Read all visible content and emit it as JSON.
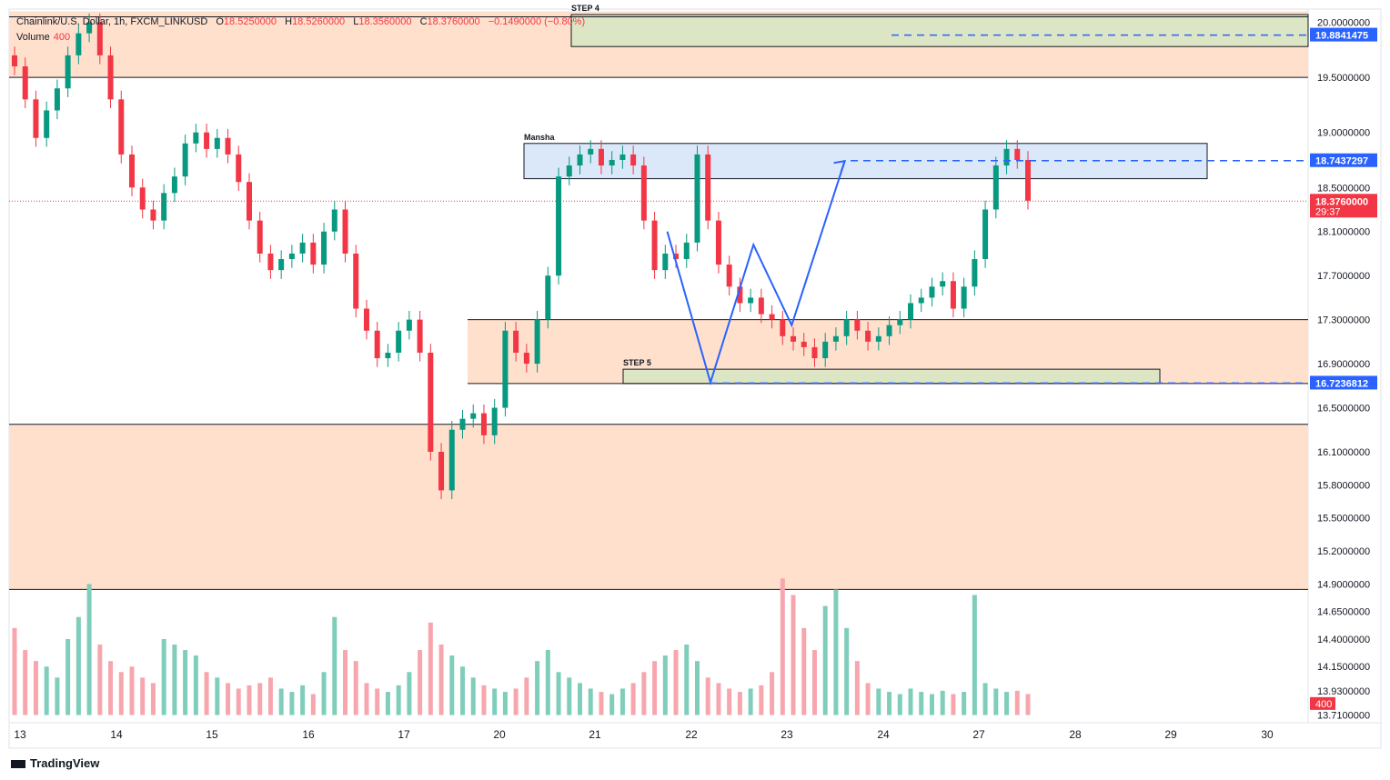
{
  "header": {
    "symbol": "Chainlink/U.S. Dollar, 1h, FXCM_LINKUSD",
    "open_label": "O",
    "open": "18.5250000",
    "high_label": "H",
    "high": "18.5260000",
    "low_label": "L",
    "low": "18.3560000",
    "close_label": "C",
    "close": "18.3760000",
    "change": "−0.1490000 (−0.80%)"
  },
  "volume_label": "Volume",
  "volume_value": "400",
  "brand": "TradingView",
  "chart_data": {
    "type": "candlestick",
    "title": "Chainlink/U.S. Dollar, 1h, FXCM_LINKUSD",
    "price_ticks": [
      "20.0000000",
      "19.5000000",
      "19.0000000",
      "18.5000000",
      "18.1000000",
      "17.7000000",
      "17.3000000",
      "16.9000000",
      "16.5000000",
      "16.1000000",
      "15.8000000",
      "15.5000000",
      "15.2000000",
      "14.9000000",
      "14.6500000",
      "14.4000000",
      "14.1500000",
      "13.9300000",
      "13.7100000"
    ],
    "price_tick_values": [
      20.0,
      19.5,
      19.0,
      18.5,
      18.1,
      17.7,
      17.3,
      16.9,
      16.5,
      16.1,
      15.8,
      15.5,
      15.2,
      14.9,
      14.65,
      14.4,
      14.15,
      13.93,
      13.71
    ],
    "time_ticks": [
      "13",
      "14",
      "15",
      "16",
      "17",
      "20",
      "21",
      "22",
      "23",
      "24",
      "27",
      "28",
      "29",
      "30"
    ],
    "price_labels": [
      {
        "text": "19.8841475",
        "value": 19.8841475,
        "color": "#2962ff"
      },
      {
        "text": "18.7437297",
        "value": 18.7437297,
        "color": "#2962ff"
      },
      {
        "text": "18.3760000",
        "value": 18.376,
        "color": "#f23645",
        "extra": "29:37"
      },
      {
        "text": "16.7236812",
        "value": 16.7236812,
        "color": "#2962ff"
      }
    ],
    "volume_badge": "400",
    "zones": [
      {
        "name": "upper-supply",
        "from": 19.5,
        "to": 20.1,
        "color": "#ffe0cc",
        "label": ""
      },
      {
        "name": "step4-box",
        "from": 19.78,
        "to": 20.07,
        "color": "#dce6c4",
        "label": "STEP 4"
      },
      {
        "name": "mansha-box",
        "from": 18.58,
        "to": 18.9,
        "color": "#dbe8fa",
        "label": "Mansha"
      },
      {
        "name": "mid-demand",
        "from": 16.72,
        "to": 17.3,
        "color": "#ffe0cc",
        "label": ""
      },
      {
        "name": "step5-box",
        "from": 16.72,
        "to": 16.85,
        "color": "#dce6c4",
        "label": "STEP 5"
      },
      {
        "name": "lower-demand",
        "from": 14.85,
        "to": 16.35,
        "color": "#ffe0cc",
        "label": ""
      }
    ],
    "pattern_path": [
      {
        "t": "21.75",
        "price": 18.1
      },
      {
        "t": "22.2",
        "price": 16.73
      },
      {
        "t": "22.65",
        "price": 17.98
      },
      {
        "t": "23.05",
        "price": 17.25
      },
      {
        "t": "23.6",
        "price": 18.74
      }
    ],
    "closes": [
      19.6,
      19.3,
      18.95,
      19.2,
      19.4,
      19.7,
      19.9,
      20.0,
      19.7,
      19.3,
      18.8,
      18.5,
      18.3,
      18.2,
      18.45,
      18.6,
      18.9,
      19.0,
      18.85,
      18.95,
      18.8,
      18.55,
      18.2,
      17.9,
      17.75,
      17.85,
      17.9,
      18.0,
      17.8,
      18.1,
      18.3,
      17.9,
      17.4,
      17.2,
      16.95,
      17.0,
      17.2,
      17.3,
      17.0,
      16.1,
      15.75,
      16.3,
      16.4,
      16.45,
      16.25,
      16.5,
      17.2,
      17.0,
      16.9,
      17.3,
      17.7,
      18.6,
      18.7,
      18.8,
      18.85,
      18.7,
      18.75,
      18.8,
      18.7,
      18.2,
      17.75,
      17.9,
      17.85,
      18.0,
      18.8,
      18.2,
      17.8,
      17.6,
      17.45,
      17.5,
      17.35,
      17.3,
      17.15,
      17.1,
      17.05,
      16.95,
      17.1,
      17.15,
      17.3,
      17.2,
      17.1,
      17.15,
      17.25,
      17.3,
      17.45,
      17.5,
      17.6,
      17.65,
      17.4,
      17.6,
      17.85,
      18.3,
      18.7,
      18.85,
      18.75,
      18.38
    ],
    "volumes": [
      14.5,
      14.3,
      14.2,
      14.15,
      14.05,
      14.4,
      14.6,
      14.9,
      14.35,
      14.2,
      14.1,
      14.15,
      14.05,
      14.0,
      14.4,
      14.35,
      14.3,
      14.25,
      14.1,
      14.05,
      14.0,
      13.95,
      13.98,
      14.0,
      14.05,
      13.95,
      13.92,
      13.98,
      13.9,
      14.1,
      14.6,
      14.3,
      14.2,
      14.0,
      13.95,
      13.92,
      13.98,
      14.1,
      14.3,
      14.55,
      14.35,
      14.25,
      14.15,
      14.05,
      13.98,
      13.95,
      13.92,
      13.95,
      14.05,
      14.2,
      14.3,
      14.1,
      14.05,
      14.0,
      13.95,
      13.92,
      13.9,
      13.95,
      14.0,
      14.1,
      14.2,
      14.25,
      14.3,
      14.35,
      14.2,
      14.05,
      14.0,
      13.95,
      13.92,
      13.95,
      13.98,
      14.1,
      14.95,
      14.8,
      14.5,
      14.3,
      14.7,
      14.85,
      14.5,
      14.2,
      14.0,
      13.95,
      13.92,
      13.9,
      13.95,
      13.92,
      13.9,
      13.93,
      13.9,
      13.92,
      14.8,
      14.0,
      13.95,
      13.92,
      13.93,
      13.9
    ]
  }
}
